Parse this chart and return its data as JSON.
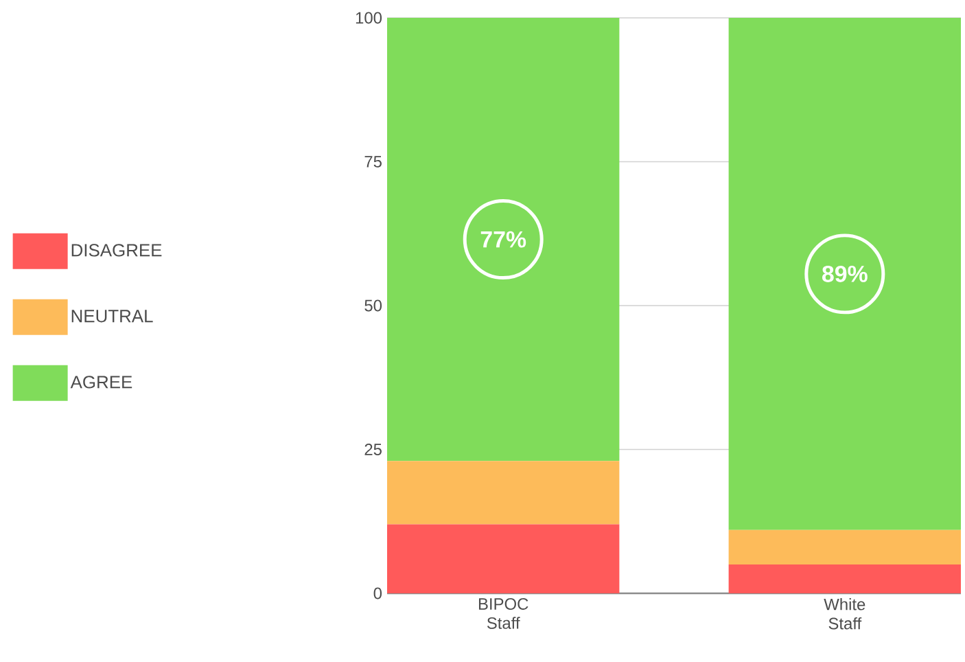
{
  "chart_data": {
    "type": "bar",
    "stacked": true,
    "categories": [
      "BIPOC Staff",
      "White Staff"
    ],
    "series": [
      {
        "name": "DISAGREE",
        "color": "#ff5a5a",
        "values": [
          12,
          5
        ]
      },
      {
        "name": "NEUTRAL",
        "color": "#fdbb5a",
        "values": [
          11,
          6
        ]
      },
      {
        "name": "AGREE",
        "color": "#80dc5a",
        "values": [
          77,
          89
        ],
        "value_labels": [
          "77%",
          "89%"
        ]
      }
    ],
    "ylim": [
      0,
      100
    ],
    "yticks": [
      0,
      25,
      50,
      75,
      100
    ],
    "grid": "y",
    "legend": "left"
  }
}
